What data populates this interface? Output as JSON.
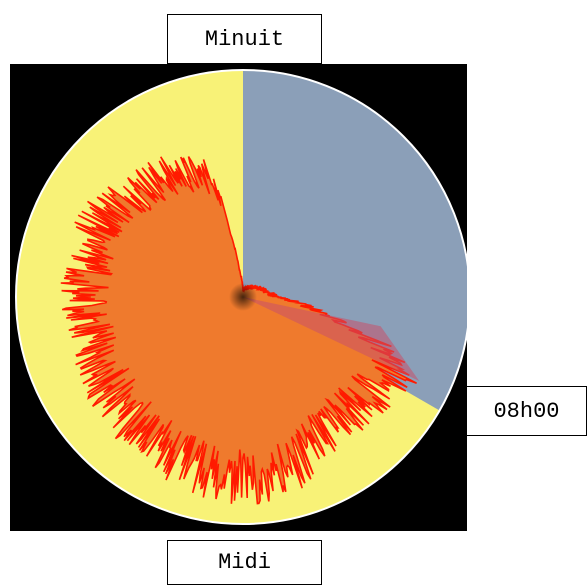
{
  "labels": {
    "top": "Minuit",
    "bottom": "Midi",
    "right": "08h00"
  },
  "colors": {
    "background": "#000000",
    "face": "#f8f277",
    "night_sector": "#8b9fb8",
    "activity_fill": "#ef7a2d",
    "activity_stroke": "#ff1a00",
    "highlight_wedge": "#c8506a",
    "rim": "#ffffff"
  },
  "chart_data": {
    "type": "polar-area",
    "period_hours": 24,
    "night_sector_hours": [
      0,
      8
    ],
    "orientation": "clockwise, midnight at top",
    "activity_profile": [
      {
        "hour": 0.0,
        "value": 0.03
      },
      {
        "hour": 1.0,
        "value": 0.04
      },
      {
        "hour": 2.0,
        "value": 0.05
      },
      {
        "hour": 3.0,
        "value": 0.06
      },
      {
        "hour": 4.0,
        "value": 0.08
      },
      {
        "hour": 5.0,
        "value": 0.1
      },
      {
        "hour": 6.0,
        "value": 0.14
      },
      {
        "hour": 6.8,
        "value": 0.35
      },
      {
        "hour": 7.2,
        "value": 0.6
      },
      {
        "hour": 7.6,
        "value": 0.75
      },
      {
        "hour": 8.0,
        "value": 0.72
      },
      {
        "hour": 9.0,
        "value": 0.68
      },
      {
        "hour": 10.0,
        "value": 0.7
      },
      {
        "hour": 11.0,
        "value": 0.78
      },
      {
        "hour": 12.0,
        "value": 0.8
      },
      {
        "hour": 13.0,
        "value": 0.78
      },
      {
        "hour": 14.0,
        "value": 0.74
      },
      {
        "hour": 15.0,
        "value": 0.72
      },
      {
        "hour": 16.0,
        "value": 0.7
      },
      {
        "hour": 17.0,
        "value": 0.68
      },
      {
        "hour": 18.0,
        "value": 0.7
      },
      {
        "hour": 19.0,
        "value": 0.7
      },
      {
        "hour": 20.0,
        "value": 0.72
      },
      {
        "hour": 21.0,
        "value": 0.66
      },
      {
        "hour": 22.0,
        "value": 0.62
      },
      {
        "hour": 23.0,
        "value": 0.55
      },
      {
        "hour": 23.5,
        "value": 0.12
      }
    ]
  }
}
